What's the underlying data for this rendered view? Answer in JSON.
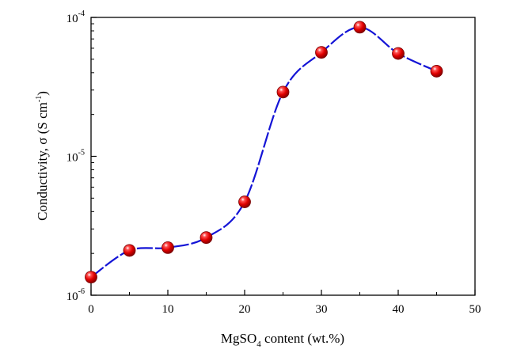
{
  "chart_data": {
    "type": "scatter",
    "title": "",
    "xlabel": {
      "pre": "MgSO",
      "sub": "4",
      "post": " content (wt.%)"
    },
    "ylabel": {
      "pre": "Conductivity, σ (S cm",
      "sup": "-1",
      "post": ")"
    },
    "x_scale": "linear",
    "y_scale": "log",
    "xlim": [
      0,
      50
    ],
    "ylim": [
      1e-06,
      0.0001
    ],
    "x_ticks": [
      {
        "value": 0,
        "label": "0"
      },
      {
        "value": 10,
        "label": "10"
      },
      {
        "value": 20,
        "label": "20"
      },
      {
        "value": 30,
        "label": "30"
      },
      {
        "value": 40,
        "label": "40"
      },
      {
        "value": 50,
        "label": "50"
      }
    ],
    "y_ticks": [
      {
        "value": 1e-06,
        "base": "10",
        "exp": "-6"
      },
      {
        "value": 1e-05,
        "base": "10",
        "exp": "-5"
      },
      {
        "value": 0.0001,
        "base": "10",
        "exp": "-4"
      }
    ],
    "grid": false,
    "legend": "none",
    "series": [
      {
        "x": [
          0,
          5,
          10,
          15,
          20,
          25,
          30,
          35,
          40,
          45
        ],
        "y": [
          1.35e-06,
          2.1e-06,
          2.2e-06,
          2.6e-06,
          4.7e-06,
          2.9e-05,
          5.6e-05,
          8.5e-05,
          5.5e-05,
          4.1e-05
        ],
        "marker_color": "#e00000",
        "line_color": "#1414d6",
        "line_style": "dashed smooth fit"
      }
    ]
  }
}
